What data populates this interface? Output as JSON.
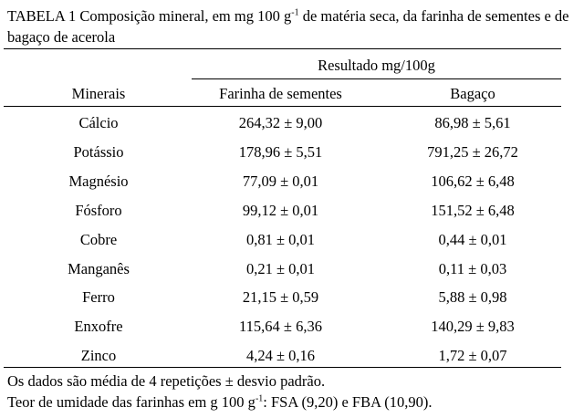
{
  "caption": {
    "prefix": "TABELA 1 Composição mineral, em mg 100 g",
    "superscript": "-1",
    "suffix": " de matéria seca, da farinha de sementes e de bagaço de acerola"
  },
  "table": {
    "group_header": "Resultado mg/100g",
    "headers": [
      "Minerais",
      "Farinha de sementes",
      "Bagaço"
    ],
    "rows": [
      [
        "Cálcio",
        "264,32 ± 9,00",
        "86,98 ± 5,61"
      ],
      [
        "Potássio",
        "178,96 ± 5,51",
        "791,25 ± 26,72"
      ],
      [
        "Magnésio",
        "77,09 ± 0,01",
        "106,62 ± 6,48"
      ],
      [
        "Fósforo",
        "99,12 ± 0,01",
        "151,52 ± 6,48"
      ],
      [
        "Cobre",
        "0,81 ± 0,01",
        "0,44 ± 0,01"
      ],
      [
        "Manganês",
        "0,21 ± 0,01",
        "0,11 ± 0,03"
      ],
      [
        "Ferro",
        "21,15 ± 0,59",
        "5,88 ± 0,98"
      ],
      [
        "Enxofre",
        "115,64 ± 6,36",
        "140,29 ± 9,83"
      ],
      [
        "Zinco",
        "4,24 ± 0,16",
        "1,72 ± 0,07"
      ]
    ]
  },
  "footer": {
    "note1": "Os dados são média de 4 repetições ± desvio padrão.",
    "note2_prefix": "Teor de umidade das farinhas em g 100 g",
    "note2_superscript": "-1",
    "note2_suffix": ": FSA (9,20) e FBA (10,90)."
  }
}
